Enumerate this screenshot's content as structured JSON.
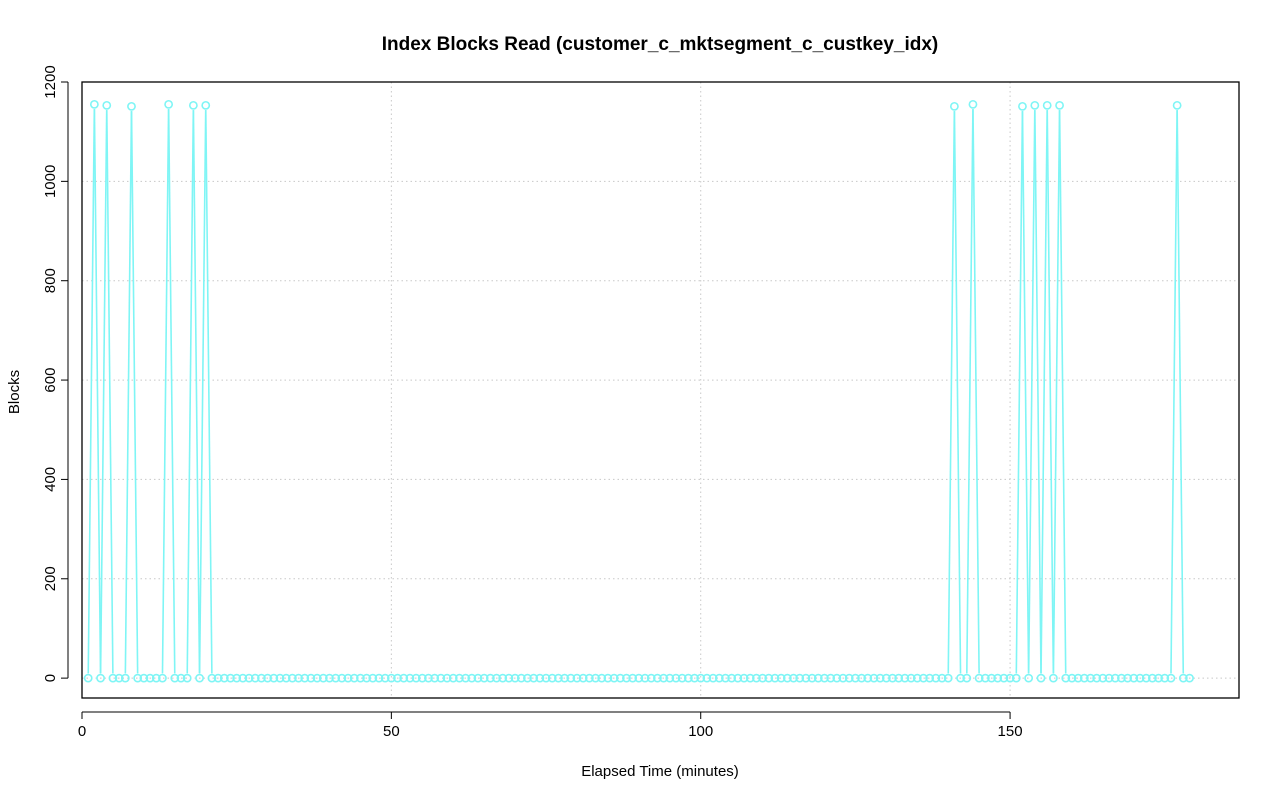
{
  "chart_data": {
    "type": "line",
    "title": "Index Blocks Read (customer_c_mktsegment_c_custkey_idx)",
    "xlabel": "Elapsed Time (minutes)",
    "ylabel": "Blocks",
    "xlim": [
      0,
      187
    ],
    "ylim": [
      -40,
      1200
    ],
    "x_ticks": [
      0,
      50,
      100,
      150
    ],
    "y_ticks": [
      0,
      200,
      400,
      600,
      800,
      1000,
      1200
    ],
    "grid": true,
    "grid_style": "dotted",
    "series_color": "#7ff5f5",
    "x_start": 1,
    "x_end": 179,
    "baseline_value": 0,
    "peaks": [
      {
        "x": 2,
        "y": 1155
      },
      {
        "x": 4,
        "y": 1153
      },
      {
        "x": 8,
        "y": 1151
      },
      {
        "x": 14,
        "y": 1155
      },
      {
        "x": 18,
        "y": 1153
      },
      {
        "x": 20,
        "y": 1153
      },
      {
        "x": 141,
        "y": 1151
      },
      {
        "x": 144,
        "y": 1155
      },
      {
        "x": 152,
        "y": 1151
      },
      {
        "x": 154,
        "y": 1153
      },
      {
        "x": 156,
        "y": 1153
      },
      {
        "x": 158,
        "y": 1153
      },
      {
        "x": 177,
        "y": 1153
      }
    ]
  }
}
